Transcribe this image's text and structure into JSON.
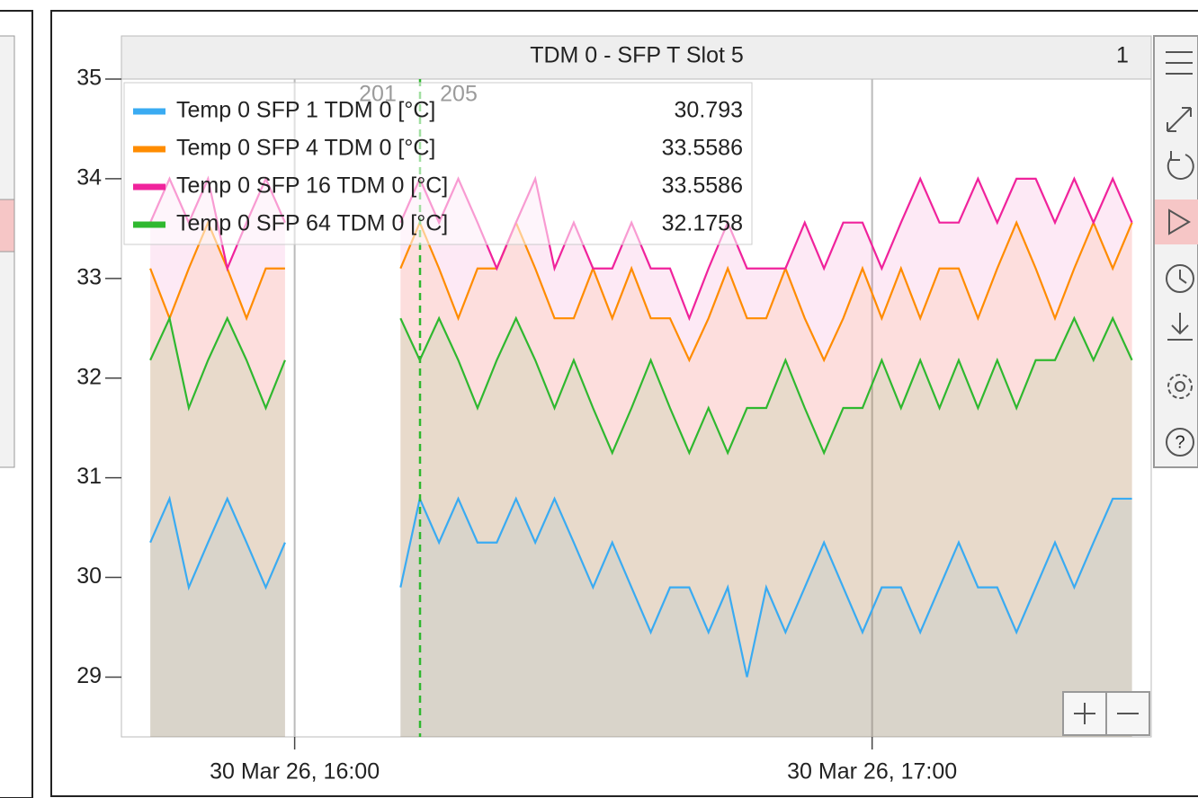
{
  "chart_data": {
    "type": "line",
    "title": "TDM 0 - SFP T Slot 5",
    "panel_number": "1",
    "cursor_labels": [
      "201",
      "205"
    ],
    "x": [
      "30 Mar 26, 15:45",
      "30 Mar 26, 15:47",
      "30 Mar 26, 15:49",
      "30 Mar 26, 15:51",
      "30 Mar 26, 15:53",
      "30 Mar 26, 15:55",
      "30 Mar 26, 15:57",
      "30 Mar 26, 15:59",
      "30 Mar 26, 16:05",
      "30 Mar 26, 16:11",
      "30 Mar 26, 16:13",
      "30 Mar 26, 16:15",
      "30 Mar 26, 16:17",
      "30 Mar 26, 16:19",
      "30 Mar 26, 16:21",
      "30 Mar 26, 16:23",
      "30 Mar 26, 16:25",
      "30 Mar 26, 16:27",
      "30 Mar 26, 16:29",
      "30 Mar 26, 16:31",
      "30 Mar 26, 16:33",
      "30 Mar 26, 16:35",
      "30 Mar 26, 16:37",
      "30 Mar 26, 16:39",
      "30 Mar 26, 16:41",
      "30 Mar 26, 16:43",
      "30 Mar 26, 16:45",
      "30 Mar 26, 16:47",
      "30 Mar 26, 16:49",
      "30 Mar 26, 16:51",
      "30 Mar 26, 16:53",
      "30 Mar 26, 16:55",
      "30 Mar 26, 16:57",
      "30 Mar 26, 16:59",
      "30 Mar 26, 17:01",
      "30 Mar 26, 17:03",
      "30 Mar 26, 17:05",
      "30 Mar 26, 17:07",
      "30 Mar 26, 17:09",
      "30 Mar 26, 17:11",
      "30 Mar 26, 17:13",
      "30 Mar 26, 17:15",
      "30 Mar 26, 17:17",
      "30 Mar 26, 17:19",
      "30 Mar 26, 17:21",
      "30 Mar 26, 17:23",
      "30 Mar 26, 17:25",
      "30 Mar 26, 17:27"
    ],
    "series": [
      {
        "name": "Temp 0 SFP 1 TDM 0 [°C]",
        "color": "#3aabf2",
        "current": "30.793",
        "values": [
          30.35,
          30.79,
          29.9,
          30.35,
          30.79,
          30.35,
          29.9,
          30.35,
          null,
          29.9,
          30.79,
          30.35,
          30.79,
          30.35,
          30.35,
          30.79,
          30.35,
          30.79,
          30.35,
          29.9,
          30.35,
          29.9,
          29.45,
          29.9,
          29.9,
          29.45,
          29.9,
          29.0,
          29.9,
          29.45,
          29.9,
          30.35,
          29.9,
          29.45,
          29.9,
          29.9,
          29.45,
          29.9,
          30.35,
          29.9,
          29.9,
          29.45,
          29.9,
          30.35,
          29.9,
          30.35,
          30.79,
          30.79
        ]
      },
      {
        "name": "Temp 0 SFP 4 TDM 0 [°C]",
        "color": "#ff8c00",
        "current": "33.5586",
        "values": [
          33.1,
          32.6,
          33.1,
          33.56,
          33.1,
          32.6,
          33.1,
          33.1,
          null,
          33.1,
          33.56,
          33.1,
          32.6,
          33.1,
          33.1,
          33.56,
          33.1,
          32.6,
          32.6,
          33.1,
          32.6,
          33.1,
          32.6,
          32.6,
          32.18,
          32.6,
          33.1,
          32.6,
          32.6,
          33.1,
          32.6,
          32.18,
          32.6,
          33.1,
          32.6,
          33.1,
          32.6,
          33.1,
          33.1,
          32.6,
          33.1,
          33.56,
          33.1,
          32.6,
          33.1,
          33.56,
          33.1,
          33.56
        ]
      },
      {
        "name": "Temp 0 SFP 16 TDM 0 [°C]",
        "color": "#f0239c",
        "current": "33.5586",
        "values": [
          33.56,
          34.0,
          33.56,
          34.0,
          33.1,
          33.56,
          34.0,
          33.56,
          null,
          33.56,
          34.0,
          33.56,
          34.0,
          33.56,
          33.1,
          33.56,
          34.0,
          33.1,
          33.56,
          33.1,
          33.1,
          33.56,
          33.1,
          33.1,
          32.6,
          33.1,
          33.56,
          33.1,
          33.1,
          33.1,
          33.56,
          33.1,
          33.56,
          33.56,
          33.1,
          33.56,
          34.0,
          33.56,
          33.56,
          34.0,
          33.56,
          34.0,
          34.0,
          33.56,
          34.0,
          33.56,
          34.0,
          33.56
        ]
      },
      {
        "name": "Temp 0 SFP 64 TDM 0 [°C]",
        "color": "#2fb82f",
        "current": "32.1758",
        "values": [
          32.18,
          32.6,
          31.7,
          32.18,
          32.6,
          32.18,
          31.7,
          32.18,
          null,
          32.6,
          32.18,
          32.6,
          32.18,
          31.7,
          32.18,
          32.6,
          32.18,
          31.7,
          32.18,
          31.7,
          31.25,
          31.7,
          32.18,
          31.7,
          31.25,
          31.7,
          31.25,
          31.7,
          31.7,
          32.18,
          31.7,
          31.25,
          31.7,
          31.7,
          32.18,
          31.7,
          32.18,
          31.7,
          32.18,
          31.7,
          32.18,
          31.7,
          32.18,
          32.18,
          32.6,
          32.18,
          32.6,
          32.18
        ]
      }
    ],
    "xlim": [
      "30 Mar 26, 15:42",
      "30 Mar 26, 17:29"
    ],
    "xticks": [
      "30 Mar 26, 16:00",
      "30 Mar 26, 17:00"
    ],
    "ylim": [
      28.4,
      35
    ],
    "yticks": [
      29,
      30,
      31,
      32,
      33,
      34,
      35
    ],
    "grid": true
  }
}
